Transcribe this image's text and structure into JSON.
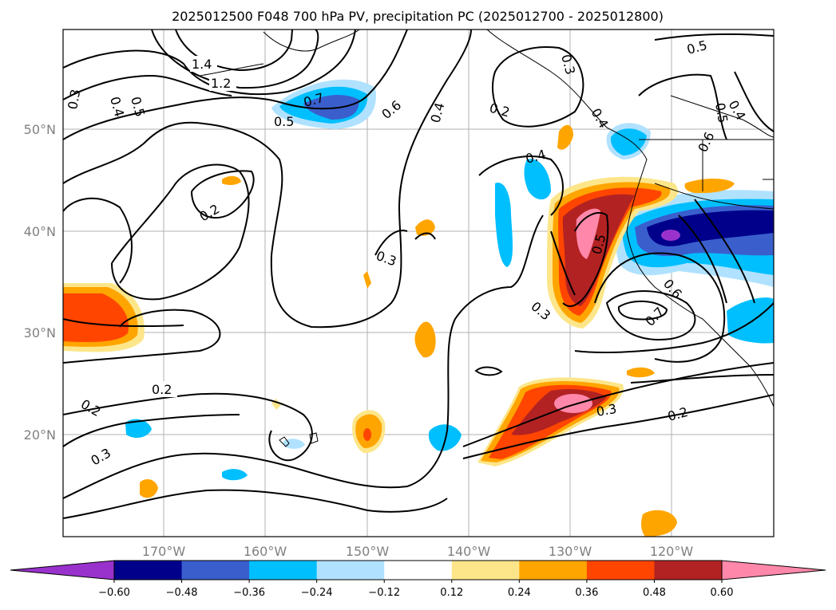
{
  "title": "2025012500 F048 700 hPa PV, precipitation PC (2025012700 - 2025012800)",
  "map": {
    "lon_range": [
      -180,
      -110
    ],
    "lat_range": [
      10,
      60
    ],
    "grid": true,
    "lon_labels": [
      "170°W",
      "160°W",
      "150°W",
      "140°W",
      "130°W",
      "120°W"
    ],
    "lat_labels": [
      "50°N",
      "40°N",
      "30°N",
      "20°N"
    ]
  },
  "colorbar": {
    "ticks": [
      "−0.60",
      "−0.48",
      "−0.36",
      "−0.24",
      "−0.12",
      "0.12",
      "0.24",
      "0.36",
      "0.48",
      "0.60"
    ],
    "colors": [
      "#9932cc",
      "#00008b",
      "#3a5fcd",
      "#00bfff",
      "#b0e2ff",
      "#ffffff",
      "#fde68a",
      "#ffa500",
      "#ff4500",
      "#b22222",
      "#ff88aa"
    ],
    "extend": "both"
  },
  "contour_labels": [
    "1.4",
    "1.2",
    "0.3",
    "0.4",
    "0.5",
    "0.7",
    "0.5",
    "0.6",
    "0.4",
    "0.2",
    "0.3",
    "0.5",
    "0.4",
    "0.5",
    "0.4",
    "0.6",
    "0.2",
    "0.3",
    "0.4",
    "0.5",
    "0.3",
    "0.6",
    "0.7",
    "0.2",
    "0.2",
    "0.3",
    "0.3",
    "0.2"
  ]
}
